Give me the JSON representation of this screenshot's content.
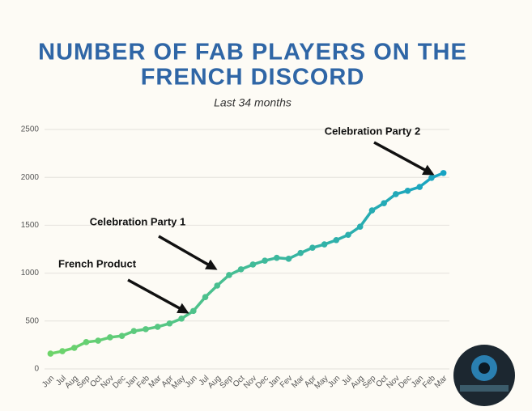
{
  "chart_data": {
    "type": "line",
    "title": [
      "NUMBER OF FAB PLAYERS ON THE",
      "FRENCH DISCORD"
    ],
    "subtitle": "Last 34 months",
    "categories": [
      "Jun",
      "Jul",
      "Aug",
      "Sep",
      "Oct",
      "Nov",
      "Dec",
      "Jan",
      "Feb",
      "Mar",
      "Apr",
      "May",
      "Jun",
      "Jul",
      "Aug",
      "Sep",
      "Oct",
      "Nov",
      "Dec",
      "Jan",
      "Fev",
      "Mar",
      "Apr",
      "May",
      "Jun",
      "Jul",
      "Aug",
      "Sep",
      "Oct",
      "Nov",
      "Dec",
      "Jan",
      "Feb",
      "Mar"
    ],
    "values": [
      160,
      185,
      220,
      280,
      295,
      330,
      345,
      395,
      415,
      440,
      475,
      525,
      605,
      750,
      870,
      980,
      1040,
      1090,
      1130,
      1160,
      1150,
      1210,
      1265,
      1300,
      1345,
      1400,
      1485,
      1655,
      1730,
      1825,
      1860,
      1900,
      1995,
      2045
    ],
    "color_gradient": [
      "#6ed46a",
      "#17a3c3"
    ],
    "ylim": [
      0,
      2500
    ],
    "yticks": [
      0,
      500,
      1000,
      1500,
      2000,
      2500
    ],
    "grid": true,
    "annotations": [
      "Celebration Party 2",
      "Celebration Party 1",
      "French Product"
    ]
  }
}
